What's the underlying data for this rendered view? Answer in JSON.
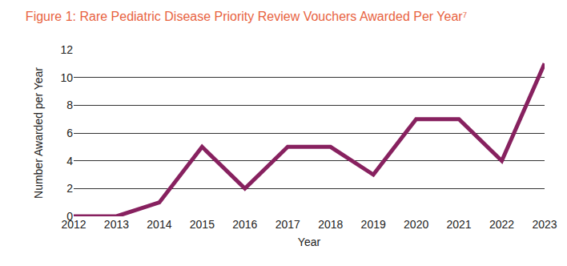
{
  "chart_data": {
    "type": "line",
    "title": "Figure 1: Rare Pediatric Disease Priority Review Vouchers Awarded Per Year⁷",
    "x_label": "Year",
    "y_label": "Number Awarded per Year",
    "categories": [
      "2012",
      "2013",
      "2014",
      "2015",
      "2016",
      "2017",
      "2018",
      "2019",
      "2020",
      "2021",
      "2022",
      "2023"
    ],
    "values": [
      0,
      0,
      1,
      5,
      2,
      5,
      5,
      3,
      7,
      7,
      4,
      11
    ],
    "color": "#87215f",
    "ylim": [
      0,
      12
    ],
    "yticks": [
      0,
      2,
      4,
      6,
      8,
      10,
      12
    ],
    "grid": true
  }
}
